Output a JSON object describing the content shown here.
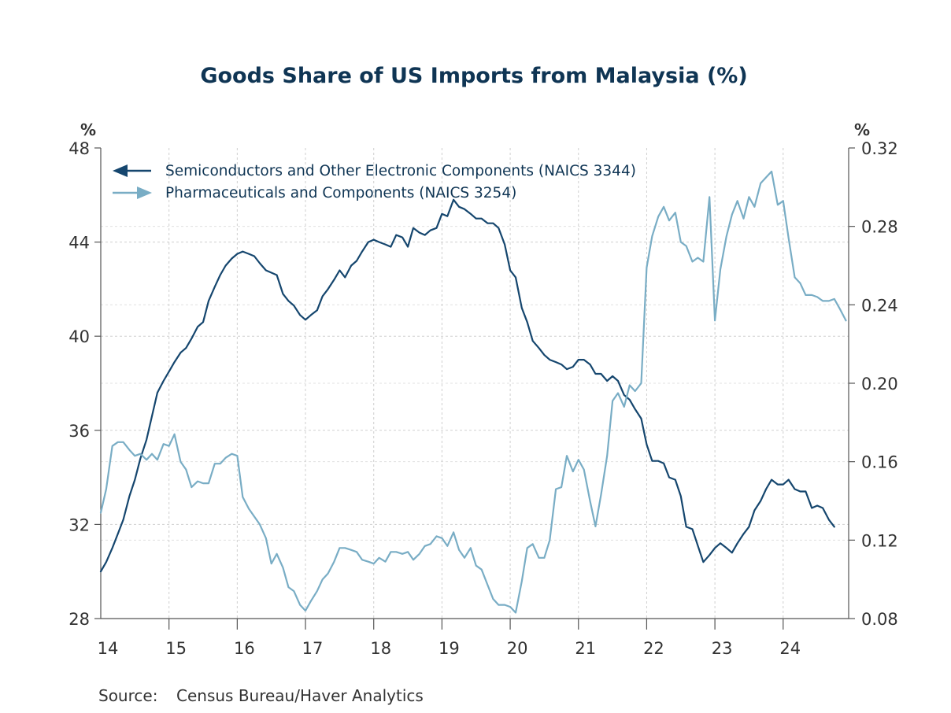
{
  "chart_data": {
    "type": "line",
    "title": "Goods Share of US Imports from Malaysia (%)",
    "left_unit": "%",
    "right_unit": "%",
    "source_label": "Source:",
    "source_text": "Census Bureau/Haver Analytics",
    "x_tick_labels": [
      "14",
      "15",
      "16",
      "17",
      "18",
      "19",
      "20",
      "21",
      "22",
      "23",
      "24"
    ],
    "x_range": [
      2014.0,
      2024.96
    ],
    "left_axis": {
      "ylim": [
        28,
        48
      ],
      "ticks": [
        "28",
        "32",
        "36",
        "40",
        "44",
        "48"
      ]
    },
    "right_axis": {
      "ylim": [
        0.08,
        0.32
      ],
      "ticks": [
        "0.08",
        "0.12",
        "0.16",
        "0.20",
        "0.24",
        "0.28",
        "0.32"
      ]
    },
    "grid": true,
    "legend_position": "top-left",
    "series": [
      {
        "name": "Semiconductors and Other Electronic Components (NAICS 3344)",
        "axis": "left",
        "color": "#15466e",
        "points": [
          [
            2014.0,
            30.0
          ],
          [
            2014.08,
            30.4
          ],
          [
            2014.17,
            31.0
          ],
          [
            2014.25,
            31.6
          ],
          [
            2014.33,
            32.2
          ],
          [
            2014.42,
            33.2
          ],
          [
            2014.5,
            33.9
          ],
          [
            2014.58,
            34.8
          ],
          [
            2014.67,
            35.6
          ],
          [
            2014.75,
            36.6
          ],
          [
            2014.83,
            37.6
          ],
          [
            2014.92,
            38.1
          ],
          [
            2015.0,
            38.5
          ],
          [
            2015.08,
            38.9
          ],
          [
            2015.17,
            39.3
          ],
          [
            2015.25,
            39.5
          ],
          [
            2015.33,
            39.9
          ],
          [
            2015.42,
            40.4
          ],
          [
            2015.5,
            40.6
          ],
          [
            2015.58,
            41.5
          ],
          [
            2015.67,
            42.1
          ],
          [
            2015.75,
            42.6
          ],
          [
            2015.83,
            43.0
          ],
          [
            2015.92,
            43.3
          ],
          [
            2016.0,
            43.5
          ],
          [
            2016.08,
            43.6
          ],
          [
            2016.17,
            43.5
          ],
          [
            2016.25,
            43.4
          ],
          [
            2016.33,
            43.1
          ],
          [
            2016.42,
            42.8
          ],
          [
            2016.5,
            42.7
          ],
          [
            2016.58,
            42.6
          ],
          [
            2016.67,
            41.8
          ],
          [
            2016.75,
            41.5
          ],
          [
            2016.83,
            41.3
          ],
          [
            2016.92,
            40.9
          ],
          [
            2017.0,
            40.7
          ],
          [
            2017.08,
            40.9
          ],
          [
            2017.17,
            41.1
          ],
          [
            2017.25,
            41.7
          ],
          [
            2017.33,
            42.0
          ],
          [
            2017.42,
            42.4
          ],
          [
            2017.5,
            42.8
          ],
          [
            2017.58,
            42.5
          ],
          [
            2017.67,
            43.0
          ],
          [
            2017.75,
            43.2
          ],
          [
            2017.83,
            43.6
          ],
          [
            2017.92,
            44.0
          ],
          [
            2018.0,
            44.1
          ],
          [
            2018.08,
            44.0
          ],
          [
            2018.17,
            43.9
          ],
          [
            2018.25,
            43.8
          ],
          [
            2018.33,
            44.3
          ],
          [
            2018.42,
            44.2
          ],
          [
            2018.5,
            43.8
          ],
          [
            2018.58,
            44.6
          ],
          [
            2018.67,
            44.4
          ],
          [
            2018.75,
            44.3
          ],
          [
            2018.83,
            44.5
          ],
          [
            2018.92,
            44.6
          ],
          [
            2019.0,
            45.2
          ],
          [
            2019.08,
            45.1
          ],
          [
            2019.17,
            45.8
          ],
          [
            2019.25,
            45.5
          ],
          [
            2019.33,
            45.4
          ],
          [
            2019.42,
            45.2
          ],
          [
            2019.5,
            45.0
          ],
          [
            2019.58,
            45.0
          ],
          [
            2019.67,
            44.8
          ],
          [
            2019.75,
            44.8
          ],
          [
            2019.83,
            44.6
          ],
          [
            2019.92,
            43.9
          ],
          [
            2020.0,
            42.8
          ],
          [
            2020.08,
            42.5
          ],
          [
            2020.17,
            41.2
          ],
          [
            2020.25,
            40.6
          ],
          [
            2020.33,
            39.8
          ],
          [
            2020.42,
            39.5
          ],
          [
            2020.5,
            39.2
          ],
          [
            2020.58,
            39.0
          ],
          [
            2020.67,
            38.9
          ],
          [
            2020.75,
            38.8
          ],
          [
            2020.83,
            38.6
          ],
          [
            2020.92,
            38.7
          ],
          [
            2021.0,
            39.0
          ],
          [
            2021.08,
            39.0
          ],
          [
            2021.17,
            38.8
          ],
          [
            2021.25,
            38.4
          ],
          [
            2021.33,
            38.4
          ],
          [
            2021.42,
            38.1
          ],
          [
            2021.5,
            38.3
          ],
          [
            2021.58,
            38.1
          ],
          [
            2021.67,
            37.5
          ],
          [
            2021.75,
            37.3
          ],
          [
            2021.83,
            36.9
          ],
          [
            2021.92,
            36.5
          ],
          [
            2022.0,
            35.4
          ],
          [
            2022.08,
            34.7
          ],
          [
            2022.17,
            34.7
          ],
          [
            2022.25,
            34.6
          ],
          [
            2022.33,
            34.0
          ],
          [
            2022.42,
            33.9
          ],
          [
            2022.5,
            33.2
          ],
          [
            2022.58,
            31.9
          ],
          [
            2022.67,
            31.8
          ],
          [
            2022.75,
            31.1
          ],
          [
            2022.83,
            30.4
          ],
          [
            2022.92,
            30.7
          ],
          [
            2023.0,
            31.0
          ],
          [
            2023.08,
            31.2
          ],
          [
            2023.17,
            31.0
          ],
          [
            2023.25,
            30.8
          ],
          [
            2023.33,
            31.2
          ],
          [
            2023.42,
            31.6
          ],
          [
            2023.5,
            31.9
          ],
          [
            2023.58,
            32.6
          ],
          [
            2023.67,
            33.0
          ],
          [
            2023.75,
            33.5
          ],
          [
            2023.83,
            33.9
          ],
          [
            2023.92,
            33.7
          ],
          [
            2024.0,
            33.7
          ],
          [
            2024.08,
            33.9
          ],
          [
            2024.17,
            33.5
          ],
          [
            2024.25,
            33.4
          ],
          [
            2024.33,
            33.4
          ],
          [
            2024.42,
            32.7
          ],
          [
            2024.5,
            32.8
          ],
          [
            2024.58,
            32.7
          ],
          [
            2024.67,
            32.2
          ],
          [
            2024.75,
            31.9
          ]
        ]
      },
      {
        "name": "Pharmaceuticals and Components (NAICS 3254)",
        "axis": "right",
        "color": "#79adc5",
        "points": [
          [
            2014.0,
            0.134
          ],
          [
            2014.08,
            0.146
          ],
          [
            2014.17,
            0.168
          ],
          [
            2014.25,
            0.17
          ],
          [
            2014.33,
            0.17
          ],
          [
            2014.42,
            0.166
          ],
          [
            2014.5,
            0.163
          ],
          [
            2014.58,
            0.164
          ],
          [
            2014.67,
            0.161
          ],
          [
            2014.75,
            0.164
          ],
          [
            2014.83,
            0.161
          ],
          [
            2014.92,
            0.169
          ],
          [
            2015.0,
            0.168
          ],
          [
            2015.08,
            0.174
          ],
          [
            2015.17,
            0.16
          ],
          [
            2015.25,
            0.156
          ],
          [
            2015.33,
            0.147
          ],
          [
            2015.42,
            0.15
          ],
          [
            2015.5,
            0.149
          ],
          [
            2015.58,
            0.149
          ],
          [
            2015.67,
            0.159
          ],
          [
            2015.75,
            0.159
          ],
          [
            2015.83,
            0.162
          ],
          [
            2015.92,
            0.164
          ],
          [
            2016.0,
            0.163
          ],
          [
            2016.08,
            0.142
          ],
          [
            2016.17,
            0.136
          ],
          [
            2016.25,
            0.132
          ],
          [
            2016.33,
            0.128
          ],
          [
            2016.42,
            0.121
          ],
          [
            2016.5,
            0.108
          ],
          [
            2016.58,
            0.113
          ],
          [
            2016.67,
            0.106
          ],
          [
            2016.75,
            0.096
          ],
          [
            2016.83,
            0.094
          ],
          [
            2016.92,
            0.087
          ],
          [
            2017.0,
            0.084
          ],
          [
            2017.08,
            0.089
          ],
          [
            2017.17,
            0.094
          ],
          [
            2017.25,
            0.1
          ],
          [
            2017.33,
            0.103
          ],
          [
            2017.42,
            0.109
          ],
          [
            2017.5,
            0.116
          ],
          [
            2017.58,
            0.116
          ],
          [
            2017.67,
            0.115
          ],
          [
            2017.75,
            0.114
          ],
          [
            2017.83,
            0.11
          ],
          [
            2017.92,
            0.109
          ],
          [
            2018.0,
            0.108
          ],
          [
            2018.08,
            0.111
          ],
          [
            2018.17,
            0.109
          ],
          [
            2018.25,
            0.114
          ],
          [
            2018.33,
            0.114
          ],
          [
            2018.42,
            0.113
          ],
          [
            2018.5,
            0.114
          ],
          [
            2018.58,
            0.11
          ],
          [
            2018.67,
            0.113
          ],
          [
            2018.75,
            0.117
          ],
          [
            2018.83,
            0.118
          ],
          [
            2018.92,
            0.122
          ],
          [
            2019.0,
            0.121
          ],
          [
            2019.08,
            0.117
          ],
          [
            2019.17,
            0.124
          ],
          [
            2019.25,
            0.115
          ],
          [
            2019.33,
            0.111
          ],
          [
            2019.42,
            0.116
          ],
          [
            2019.5,
            0.107
          ],
          [
            2019.58,
            0.105
          ],
          [
            2019.67,
            0.097
          ],
          [
            2019.75,
            0.09
          ],
          [
            2019.83,
            0.087
          ],
          [
            2019.92,
            0.087
          ],
          [
            2020.0,
            0.086
          ],
          [
            2020.08,
            0.083
          ],
          [
            2020.17,
            0.099
          ],
          [
            2020.25,
            0.116
          ],
          [
            2020.33,
            0.118
          ],
          [
            2020.42,
            0.111
          ],
          [
            2020.5,
            0.111
          ],
          [
            2020.58,
            0.12
          ],
          [
            2020.67,
            0.146
          ],
          [
            2020.75,
            0.147
          ],
          [
            2020.83,
            0.163
          ],
          [
            2020.92,
            0.155
          ],
          [
            2021.0,
            0.161
          ],
          [
            2021.08,
            0.156
          ],
          [
            2021.17,
            0.14
          ],
          [
            2021.25,
            0.127
          ],
          [
            2021.33,
            0.143
          ],
          [
            2021.42,
            0.163
          ],
          [
            2021.5,
            0.191
          ],
          [
            2021.58,
            0.195
          ],
          [
            2021.67,
            0.188
          ],
          [
            2021.75,
            0.199
          ],
          [
            2021.83,
            0.196
          ],
          [
            2021.92,
            0.2
          ],
          [
            2022.0,
            0.259
          ],
          [
            2022.08,
            0.275
          ],
          [
            2022.17,
            0.285
          ],
          [
            2022.25,
            0.29
          ],
          [
            2022.33,
            0.283
          ],
          [
            2022.42,
            0.287
          ],
          [
            2022.5,
            0.272
          ],
          [
            2022.58,
            0.27
          ],
          [
            2022.67,
            0.262
          ],
          [
            2022.75,
            0.264
          ],
          [
            2022.83,
            0.262
          ],
          [
            2022.92,
            0.295
          ],
          [
            2023.0,
            0.232
          ],
          [
            2023.08,
            0.258
          ],
          [
            2023.17,
            0.275
          ],
          [
            2023.25,
            0.286
          ],
          [
            2023.33,
            0.293
          ],
          [
            2023.42,
            0.284
          ],
          [
            2023.5,
            0.295
          ],
          [
            2023.58,
            0.29
          ],
          [
            2023.67,
            0.302
          ],
          [
            2023.75,
            0.305
          ],
          [
            2023.83,
            0.308
          ],
          [
            2023.92,
            0.291
          ],
          [
            2024.0,
            0.293
          ],
          [
            2024.08,
            0.274
          ],
          [
            2024.17,
            0.254
          ],
          [
            2024.25,
            0.251
          ],
          [
            2024.33,
            0.245
          ],
          [
            2024.42,
            0.245
          ],
          [
            2024.5,
            0.244
          ],
          [
            2024.58,
            0.242
          ],
          [
            2024.67,
            0.242
          ],
          [
            2024.75,
            0.243
          ],
          [
            2024.83,
            0.238
          ],
          [
            2024.92,
            0.232
          ]
        ]
      }
    ]
  }
}
